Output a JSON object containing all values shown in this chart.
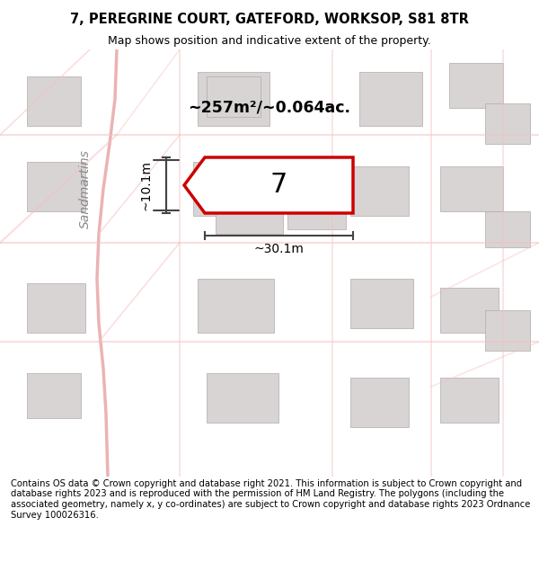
{
  "title_line1": "7, PEREGRINE COURT, GATEFORD, WORKSOP, S81 8TR",
  "title_line2": "Map shows position and indicative extent of the property.",
  "footer_text": "Contains OS data © Crown copyright and database right 2021. This information is subject to Crown copyright and database rights 2023 and is reproduced with the permission of HM Land Registry. The polygons (including the associated geometry, namely x, y co-ordinates) are subject to Crown copyright and database rights 2023 Ordnance Survey 100026316.",
  "area_label": "~257m²/~0.064ac.",
  "number_label": "7",
  "dim_h": "~10.1m",
  "dim_w": "~30.1m",
  "street_label": "Sandmartins",
  "bg_color": "#f5f0f0",
  "map_bg": "#f0eded",
  "highlight_color": "#cc0000",
  "building_fill": "#d8d4d4",
  "road_color": "#f5c0c0",
  "road_color2": "#e8a0a0",
  "title_bg": "#ffffff",
  "footer_bg": "#ffffff"
}
